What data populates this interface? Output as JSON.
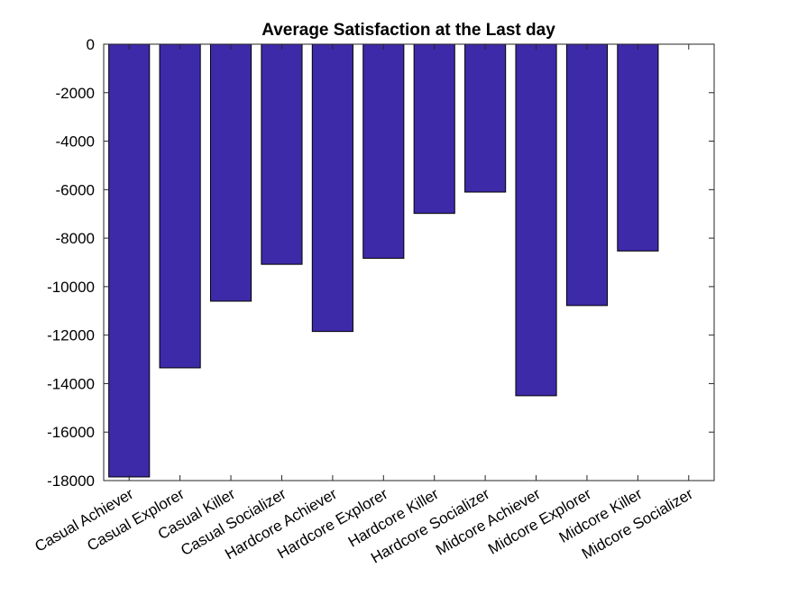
{
  "chart_data": {
    "type": "bar",
    "title": "Average Satisfaction at the Last day",
    "xlabel": "",
    "ylabel": "",
    "categories": [
      "Casual Achiever",
      "Casual Explorer",
      "Casual Killer",
      "Casual Socializer",
      "Hardcore Achiever",
      "Hardcore Explorer",
      "Hardcore Killer",
      "Hardcore Socializer",
      "Midcore Achiever",
      "Midcore Explorer",
      "Midcore Killer",
      "Midcore Socializer"
    ],
    "values": [
      -17850,
      -13350,
      -10600,
      -9080,
      -11850,
      -8830,
      -6980,
      -6100,
      -14500,
      -10780,
      -8530,
      0
    ],
    "ylim": [
      -18000,
      0
    ],
    "yticks": [
      0,
      -2000,
      -4000,
      -6000,
      -8000,
      -10000,
      -12000,
      -14000,
      -16000,
      -18000
    ],
    "grid": false,
    "legend": "none",
    "colors": {
      "bar_fill": "#3d2aa8",
      "bar_edge": "#000000",
      "axis": "#262626",
      "text": "#000000",
      "background": "#ffffff"
    }
  }
}
